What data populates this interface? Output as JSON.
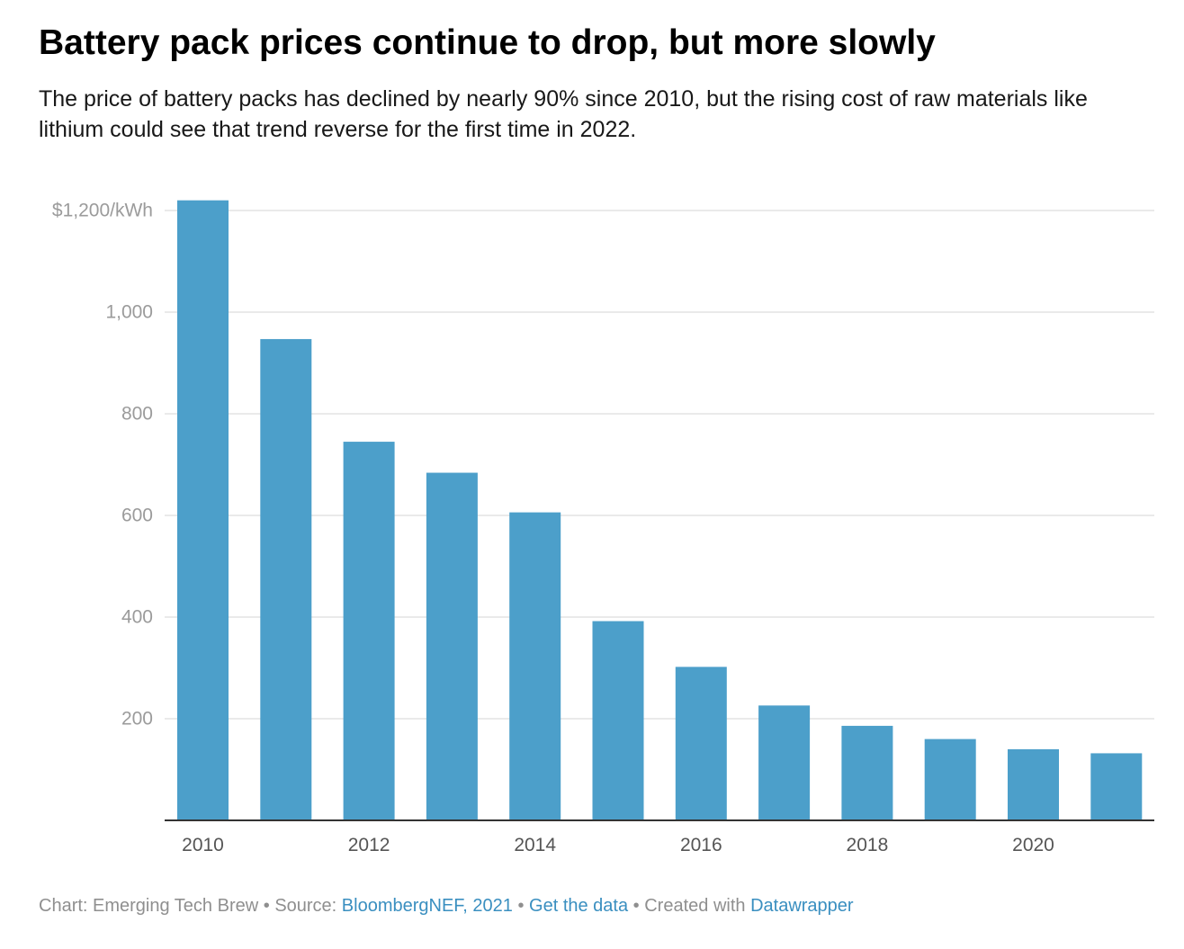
{
  "title": "Battery pack prices continue to drop, but more slowly",
  "subtitle": "The price of battery packs has declined by nearly 90% since 2010, but the rising cost of raw materials like lithium could see that trend reverse for the first time in 2022.",
  "footer": {
    "chart_prefix": "Chart: Emerging Tech Brew",
    "sep1": " • ",
    "source_prefix": "Source: ",
    "source_link": "BloombergNEF, 2021",
    "sep2": " • ",
    "data_link": "Get the data",
    "sep3": " • ",
    "created_prefix": "Created with ",
    "created_link": "Datawrapper"
  },
  "colors": {
    "bar": "#4c9fca",
    "grid": "#e3e3e3",
    "axis": "#333333",
    "tick_text": "#9b9b9b",
    "x_tick_text": "#555555",
    "link": "#3a8fc0"
  },
  "chart_data": {
    "type": "bar",
    "title": "Battery pack prices continue to drop, but more slowly",
    "categories": [
      "2010",
      "2011",
      "2012",
      "2013",
      "2014",
      "2015",
      "2016",
      "2017",
      "2018",
      "2019",
      "2020",
      "2021"
    ],
    "series": [
      {
        "values": [
          1220,
          947,
          745,
          684,
          606,
          392,
          302,
          226,
          186,
          160,
          140,
          132
        ]
      }
    ],
    "x_tick_labels": [
      "2010",
      "",
      "2012",
      "",
      "2014",
      "",
      "2016",
      "",
      "2018",
      "",
      "2020",
      ""
    ],
    "y_ticks": [
      200,
      400,
      600,
      800,
      1000,
      1200
    ],
    "y_tick_labels": [
      "200",
      "400",
      "600",
      "800",
      "1,000",
      "$1,200/kWh"
    ],
    "ylim": [
      0,
      1200
    ],
    "xlabel": "",
    "ylabel": "",
    "grid": true,
    "legend": "none"
  }
}
